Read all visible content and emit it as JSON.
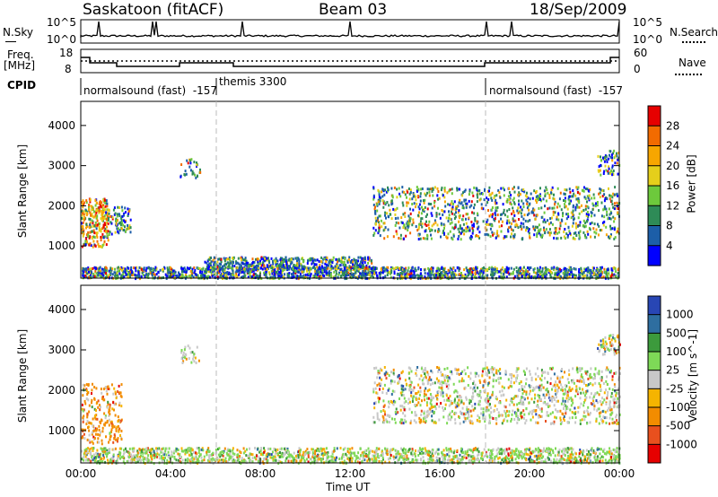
{
  "header": {
    "station": "Saskatoon (fitACF)",
    "beam": "Beam 03",
    "date": "18/Sep/2009"
  },
  "strip": {
    "nsky_label": "N.Sky",
    "nsky_ticks": [
      "10^5",
      "10^0"
    ],
    "nsearch_label": "N.Search",
    "nsearch_ticks": [
      "10^5",
      "10^0"
    ],
    "freq_label": "Freq.",
    "freq_unit": "[MHz]",
    "freq_ticks": [
      "18",
      "8"
    ],
    "nave_label": "Nave",
    "nave_ticks": [
      "60",
      "0"
    ],
    "cpid_label": "CPID",
    "cpid_segments": [
      {
        "name": "normalsound (fast)",
        "code": "-157"
      },
      {
        "name": "themis",
        "code": "3300"
      },
      {
        "name": "normalsound (fast)",
        "code": "-157"
      }
    ]
  },
  "chart_data": [
    {
      "type": "heatmap",
      "name": "power",
      "ylabel": "Slant Range [km]",
      "yticks": [
        "1000",
        "2000",
        "3000",
        "4000"
      ],
      "ylim": [
        200,
        4600
      ],
      "colorbar_label": "Power [dB]",
      "colorbar_ticks": [
        "4",
        "8",
        "12",
        "16",
        "20",
        "24",
        "28"
      ],
      "colors": [
        "#0000ff",
        "#1c5ea8",
        "#2e8b57",
        "#6dc93c",
        "#e5cf1b",
        "#f7a600",
        "#f26b00",
        "#e60000"
      ]
    },
    {
      "type": "heatmap",
      "name": "velocity",
      "ylabel": "Slant Range [km]",
      "yticks": [
        "1000",
        "2000",
        "3000",
        "4000"
      ],
      "ylim": [
        200,
        4600
      ],
      "colorbar_label": "Velocity [m s^-1]",
      "colorbar_ticks": [
        "1000",
        "500",
        "100",
        "25",
        "-25",
        "-100",
        "-500",
        "-1000"
      ],
      "colors": [
        "#2846b4",
        "#2e6ea0",
        "#3c9a3c",
        "#7ed957",
        "#c8c8c8",
        "#f5b400",
        "#f28c00",
        "#e8501e",
        "#e60000"
      ]
    }
  ],
  "xaxis": {
    "label": "Time UT",
    "ticks": [
      "00:00",
      "04:00",
      "08:00",
      "12:00",
      "16:00",
      "20:00",
      "00:00"
    ]
  }
}
